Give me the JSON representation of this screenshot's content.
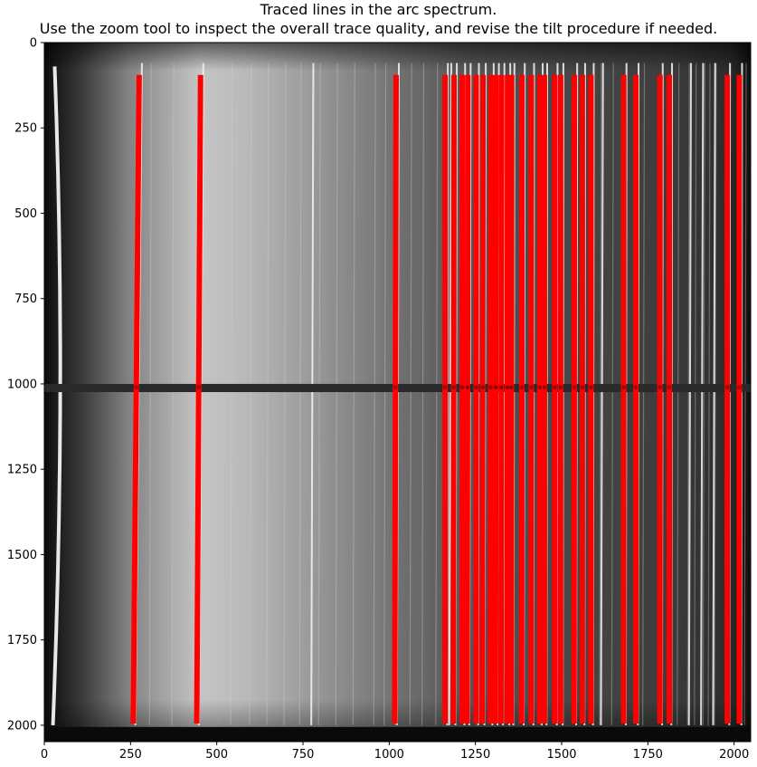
{
  "chart_data": {
    "type": "heatmap",
    "title_lines": [
      "Traced lines in the arc spectrum.",
      "Use the zoom tool to inspect the overall trace quality, and revise the tilt procedure if needed."
    ],
    "xlabel": "",
    "ylabel": "",
    "xlim": [
      0,
      2048
    ],
    "ylim": [
      2048,
      0
    ],
    "x_ticks": [
      0,
      250,
      500,
      750,
      1000,
      1250,
      1500,
      1750,
      2000
    ],
    "y_ticks": [
      0,
      250,
      500,
      750,
      1000,
      1250,
      1500,
      1750,
      2000
    ],
    "colormap": "gray",
    "grid": false,
    "trace_color": "#ff0000",
    "trace_y_range": [
      95,
      1995
    ],
    "reference_row": 1010,
    "traced_lines": [
      {
        "x_top": 275,
        "x_bottom": 258
      },
      {
        "x_top": 453,
        "x_bottom": 442
      },
      {
        "x_top": 1020,
        "x_bottom": 1016
      },
      {
        "x_top": 1162,
        "x_bottom": 1162
      },
      {
        "x_top": 1188,
        "x_bottom": 1186
      },
      {
        "x_top": 1212,
        "x_bottom": 1212
      },
      {
        "x_top": 1228,
        "x_bottom": 1226
      },
      {
        "x_top": 1252,
        "x_bottom": 1252
      },
      {
        "x_top": 1272,
        "x_bottom": 1270
      },
      {
        "x_top": 1295,
        "x_bottom": 1293
      },
      {
        "x_top": 1310,
        "x_bottom": 1308
      },
      {
        "x_top": 1326,
        "x_bottom": 1324
      },
      {
        "x_top": 1343,
        "x_bottom": 1342
      },
      {
        "x_top": 1355,
        "x_bottom": 1354
      },
      {
        "x_top": 1385,
        "x_bottom": 1384
      },
      {
        "x_top": 1412,
        "x_bottom": 1412
      },
      {
        "x_top": 1437,
        "x_bottom": 1436
      },
      {
        "x_top": 1450,
        "x_bottom": 1450
      },
      {
        "x_top": 1480,
        "x_bottom": 1480
      },
      {
        "x_top": 1497,
        "x_bottom": 1497
      },
      {
        "x_top": 1537,
        "x_bottom": 1536
      },
      {
        "x_top": 1560,
        "x_bottom": 1560
      },
      {
        "x_top": 1585,
        "x_bottom": 1585
      },
      {
        "x_top": 1680,
        "x_bottom": 1680
      },
      {
        "x_top": 1715,
        "x_bottom": 1715
      },
      {
        "x_top": 1785,
        "x_bottom": 1785
      },
      {
        "x_top": 1812,
        "x_bottom": 1812
      },
      {
        "x_top": 1980,
        "x_bottom": 1980
      },
      {
        "x_top": 2015,
        "x_bottom": 2015
      }
    ],
    "image_features": {
      "dark_band_row": 1012,
      "bright_edge_column": 40,
      "bright_region": [
        180,
        980
      ],
      "faint_lines_x": [
        310,
        375,
        545,
        600,
        650,
        700,
        745,
        800,
        850,
        900,
        960,
        990,
        1065,
        1100,
        1140,
        1615,
        1650,
        1740,
        1840,
        1870,
        1890,
        1915,
        1930,
        1948,
        2035
      ],
      "bright_lines_x": [
        780,
        1180,
        1620,
        1875,
        1910,
        1945
      ]
    }
  }
}
